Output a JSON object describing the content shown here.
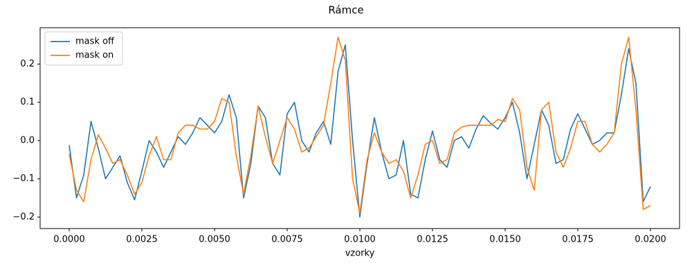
{
  "chart_data": {
    "type": "line",
    "title": "Rámce",
    "x_label": "vzorky",
    "x": [
      0,
      0.00025,
      0.0005,
      0.00075,
      0.001,
      0.00125,
      0.0015,
      0.00175,
      0.002,
      0.00225,
      0.0025,
      0.00275,
      0.003,
      0.00325,
      0.0035,
      0.00375,
      0.004,
      0.00425,
      0.0045,
      0.00475,
      0.005,
      0.00525,
      0.0055,
      0.00575,
      0.006,
      0.00625,
      0.0065,
      0.00675,
      0.007,
      0.00725,
      0.0075,
      0.00775,
      0.008,
      0.00825,
      0.0085,
      0.00875,
      0.009,
      0.00925,
      0.0095,
      0.00975,
      0.01,
      0.01025,
      0.0105,
      0.01075,
      0.011,
      0.01125,
      0.0115,
      0.01175,
      0.012,
      0.01225,
      0.0125,
      0.01275,
      0.013,
      0.01325,
      0.0135,
      0.01375,
      0.014,
      0.01425,
      0.0145,
      0.01475,
      0.015,
      0.01525,
      0.0155,
      0.01575,
      0.016,
      0.01625,
      0.0165,
      0.01675,
      0.017,
      0.01725,
      0.0175,
      0.01775,
      0.018,
      0.01825,
      0.0185,
      0.01875,
      0.019,
      0.01925,
      0.0195,
      0.01975,
      0.02
    ],
    "series": [
      {
        "name": "mask off",
        "color": "#1f77b4",
        "values": [
          -0.012,
          -0.15,
          -0.09,
          0.05,
          -0.02,
          -0.1,
          -0.07,
          -0.04,
          -0.11,
          -0.155,
          -0.08,
          0.0,
          -0.03,
          -0.07,
          -0.03,
          0.01,
          -0.01,
          0.02,
          0.06,
          0.04,
          0.02,
          0.05,
          0.12,
          0.06,
          -0.15,
          -0.06,
          0.09,
          0.06,
          -0.06,
          -0.09,
          0.07,
          0.1,
          0.0,
          -0.03,
          0.02,
          0.05,
          -0.01,
          0.18,
          0.25,
          0.0,
          -0.2,
          -0.06,
          0.06,
          -0.03,
          -0.1,
          -0.09,
          0.0,
          -0.14,
          -0.15,
          -0.05,
          0.025,
          -0.05,
          -0.07,
          0.0,
          0.01,
          -0.02,
          0.03,
          0.065,
          0.045,
          0.03,
          0.06,
          0.1,
          0.02,
          -0.1,
          -0.01,
          0.08,
          0.04,
          -0.06,
          -0.05,
          0.03,
          0.07,
          0.03,
          -0.01,
          0.0,
          0.02,
          0.02,
          0.12,
          0.24,
          0.15,
          -0.16,
          -0.12
        ]
      },
      {
        "name": "mask on",
        "color": "#ff7f0e",
        "values": [
          -0.035,
          -0.13,
          -0.16,
          -0.05,
          0.015,
          -0.02,
          -0.06,
          -0.05,
          -0.09,
          -0.14,
          -0.11,
          -0.04,
          0.01,
          -0.05,
          -0.05,
          0.02,
          0.04,
          0.04,
          0.03,
          0.03,
          0.05,
          0.11,
          0.1,
          -0.04,
          -0.14,
          -0.04,
          0.09,
          0.01,
          -0.06,
          0.0,
          0.06,
          0.03,
          -0.03,
          -0.02,
          0.01,
          0.04,
          0.15,
          0.27,
          0.21,
          -0.1,
          -0.19,
          -0.05,
          0.02,
          -0.03,
          -0.06,
          -0.05,
          -0.08,
          -0.15,
          -0.09,
          -0.01,
          0.0,
          -0.06,
          -0.05,
          0.02,
          0.035,
          0.04,
          0.04,
          0.04,
          0.04,
          0.055,
          0.05,
          0.11,
          0.08,
          -0.07,
          -0.13,
          0.08,
          0.1,
          -0.03,
          -0.07,
          -0.02,
          0.05,
          0.05,
          -0.01,
          -0.03,
          -0.01,
          0.02,
          0.2,
          0.27,
          0.08,
          -0.18,
          -0.17
        ]
      }
    ],
    "xlim": [
      -0.001,
      0.021
    ],
    "ylim": [
      -0.23,
      0.295
    ],
    "xticks": [
      {
        "value": 0,
        "label": "0.0000"
      },
      {
        "value": 0.0025,
        "label": "0.0025"
      },
      {
        "value": 0.005,
        "label": "0.0050"
      },
      {
        "value": 0.0075,
        "label": "0.0075"
      },
      {
        "value": 0.01,
        "label": "0.0100"
      },
      {
        "value": 0.0125,
        "label": "0.0125"
      },
      {
        "value": 0.015,
        "label": "0.0150"
      },
      {
        "value": 0.0175,
        "label": "0.0175"
      },
      {
        "value": 0.02,
        "label": "0.0200"
      }
    ],
    "yticks": [
      {
        "value": -0.2,
        "label": "−0.2"
      },
      {
        "value": -0.1,
        "label": "−0.1"
      },
      {
        "value": 0,
        "label": "0.0"
      },
      0.1,
      0.2
    ],
    "grid": false,
    "legend": "upper left"
  }
}
